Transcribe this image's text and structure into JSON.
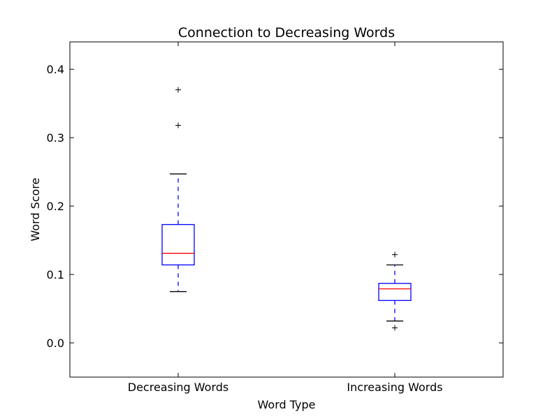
{
  "chart_data": {
    "type": "boxplot",
    "title": "Connection to Decreasing Words",
    "xlabel": "Word Type",
    "ylabel": "Word Score",
    "categories": [
      "Decreasing Words",
      "Increasing Words"
    ],
    "ylim": [
      -0.05,
      0.44
    ],
    "yticks": [
      0.0,
      0.1,
      0.2,
      0.3,
      0.4
    ],
    "ytick_labels": [
      "0.0",
      "0.1",
      "0.2",
      "0.3",
      "0.4"
    ],
    "grid": false,
    "boxes": [
      {
        "category": "Decreasing Words",
        "whisker_low": 0.075,
        "q1": 0.114,
        "median": 0.131,
        "q3": 0.173,
        "whisker_high": 0.247,
        "outliers": [
          0.37,
          0.318
        ]
      },
      {
        "category": "Increasing Words",
        "whisker_low": 0.032,
        "q1": 0.062,
        "median": 0.079,
        "q3": 0.087,
        "whisker_high": 0.114,
        "outliers": [
          0.129,
          0.022
        ]
      }
    ],
    "colors": {
      "box": "#0000ff",
      "median": "#ff0000",
      "whisker": "#0000ff",
      "cap": "#000000",
      "flier": "#000000"
    }
  }
}
